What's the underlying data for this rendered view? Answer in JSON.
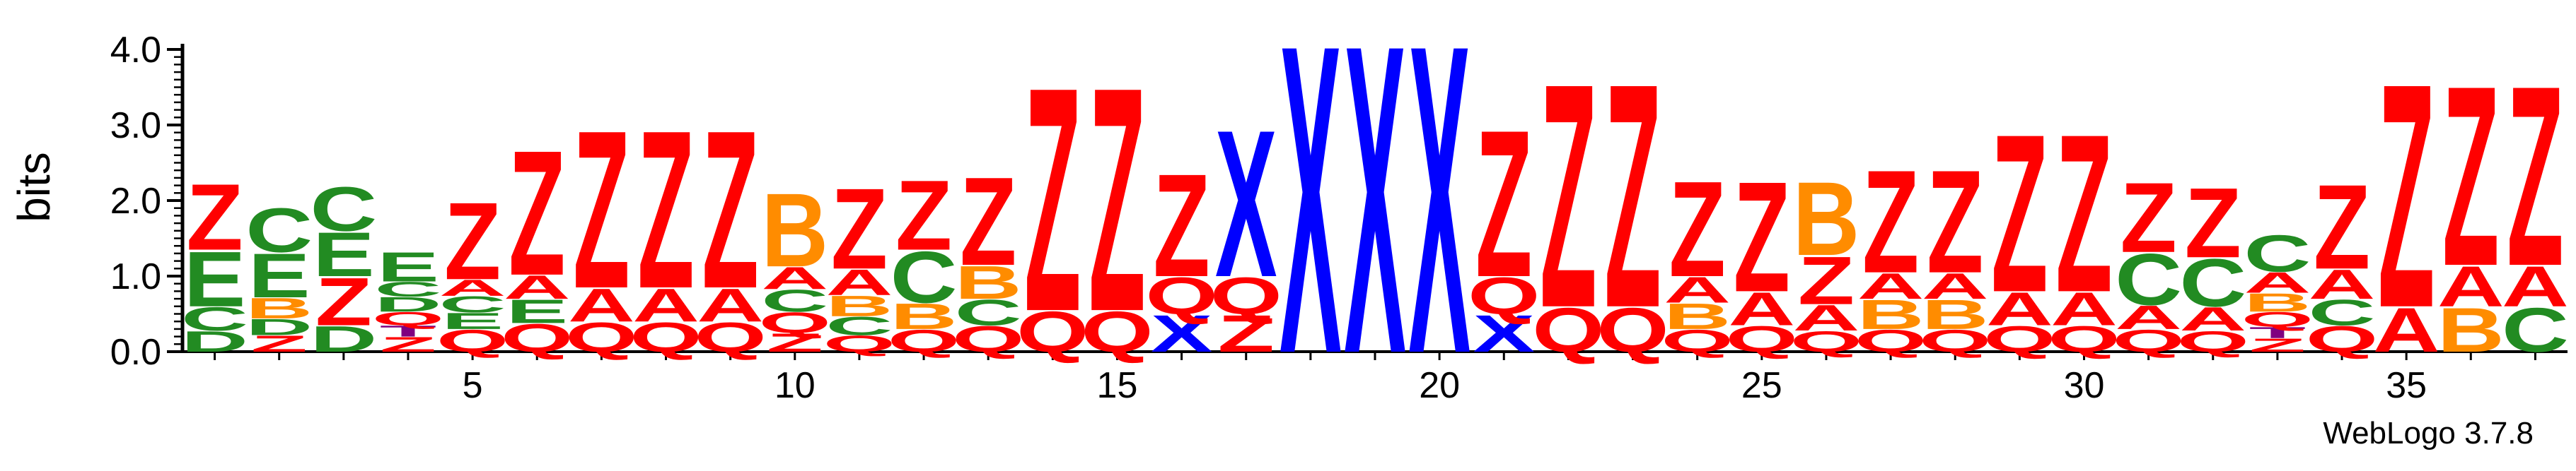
{
  "chart_data": {
    "type": "sequence_logo",
    "ylabel": "bits",
    "ylim": [
      0,
      4.0
    ],
    "yticks": [
      "0.0",
      "1.0",
      "2.0",
      "3.0",
      "4.0"
    ],
    "xticks": [
      "5",
      "10",
      "15",
      "20",
      "25",
      "30",
      "35"
    ],
    "xtick_positions": [
      5,
      10,
      15,
      20,
      25,
      30,
      35
    ],
    "colors": {
      "Z": "#ff0000",
      "Q": "#ff0000",
      "X": "#0000ff",
      "E": "#228b22",
      "C": "#228b22",
      "D": "#228b22",
      "A": "#ff0000",
      "B": "#ff8c00",
      "T": "#800080"
    },
    "positions": [
      {
        "pos": 1,
        "stack": [
          [
            "D",
            0.28
          ],
          [
            "C",
            0.32
          ],
          [
            "E",
            0.75
          ],
          [
            "Z",
            0.9
          ]
        ]
      },
      {
        "pos": 2,
        "stack": [
          [
            "Z",
            0.22
          ],
          [
            "D",
            0.22
          ],
          [
            "B",
            0.28
          ],
          [
            "E",
            0.6
          ],
          [
            "C",
            0.6
          ]
        ]
      },
      {
        "pos": 3,
        "stack": [
          [
            "D",
            0.35
          ],
          [
            "Z",
            0.65
          ],
          [
            "E",
            0.6
          ],
          [
            "C",
            0.6
          ]
        ]
      },
      {
        "pos": 4,
        "stack": [
          [
            "Z",
            0.2
          ],
          [
            "T",
            0.15
          ],
          [
            "Q",
            0.18
          ],
          [
            "D",
            0.2
          ],
          [
            "C",
            0.2
          ],
          [
            "E",
            0.4
          ]
        ]
      },
      {
        "pos": 5,
        "stack": [
          [
            "Q",
            0.3
          ],
          [
            "E",
            0.22
          ],
          [
            "C",
            0.22
          ],
          [
            "A",
            0.22
          ],
          [
            "Z",
            1.05
          ]
        ]
      },
      {
        "pos": 6,
        "stack": [
          [
            "Q",
            0.38
          ],
          [
            "E",
            0.32
          ],
          [
            "A",
            0.32
          ],
          [
            "Z",
            1.7
          ]
        ]
      },
      {
        "pos": 7,
        "stack": [
          [
            "Q",
            0.4
          ],
          [
            "A",
            0.45
          ],
          [
            "Z",
            2.15
          ]
        ]
      },
      {
        "pos": 8,
        "stack": [
          [
            "Q",
            0.4
          ],
          [
            "A",
            0.45
          ],
          [
            "Z",
            2.15
          ]
        ]
      },
      {
        "pos": 9,
        "stack": [
          [
            "Q",
            0.4
          ],
          [
            "A",
            0.45
          ],
          [
            "Z",
            2.15
          ]
        ]
      },
      {
        "pos": 10,
        "stack": [
          [
            "Z",
            0.25
          ],
          [
            "Q",
            0.28
          ],
          [
            "C",
            0.3
          ],
          [
            "A",
            0.3
          ],
          [
            "B",
            1.0
          ]
        ]
      },
      {
        "pos": 11,
        "stack": [
          [
            "Q",
            0.22
          ],
          [
            "C",
            0.25
          ],
          [
            "B",
            0.28
          ],
          [
            "A",
            0.35
          ],
          [
            "Z",
            1.1
          ]
        ]
      },
      {
        "pos": 12,
        "stack": [
          [
            "Q",
            0.3
          ],
          [
            "B",
            0.35
          ],
          [
            "C",
            0.7
          ],
          [
            "Z",
            0.95
          ]
        ]
      },
      {
        "pos": 13,
        "stack": [
          [
            "Q",
            0.35
          ],
          [
            "C",
            0.35
          ],
          [
            "B",
            0.45
          ],
          [
            "Z",
            1.2
          ]
        ]
      },
      {
        "pos": 14,
        "stack": [
          [
            "Q",
            0.55
          ],
          [
            "Z",
            3.05
          ]
        ]
      },
      {
        "pos": 15,
        "stack": [
          [
            "Q",
            0.55
          ],
          [
            "Z",
            3.05
          ]
        ]
      },
      {
        "pos": 16,
        "stack": [
          [
            "X",
            0.5
          ],
          [
            "Q",
            0.5
          ],
          [
            "Z",
            1.4
          ]
        ]
      },
      {
        "pos": 17,
        "stack": [
          [
            "Z",
            0.5
          ],
          [
            "Q",
            0.5
          ],
          [
            "X",
            2.0
          ]
        ]
      },
      {
        "pos": 18,
        "stack": [
          [
            "X",
            4.2
          ]
        ]
      },
      {
        "pos": 19,
        "stack": [
          [
            "X",
            4.2
          ]
        ]
      },
      {
        "pos": 20,
        "stack": [
          [
            "X",
            4.2
          ]
        ]
      },
      {
        "pos": 21,
        "stack": [
          [
            "X",
            0.5
          ],
          [
            "Q",
            0.5
          ],
          [
            "Z",
            2.0
          ]
        ]
      },
      {
        "pos": 22,
        "stack": [
          [
            "Q",
            0.6
          ],
          [
            "Z",
            3.05
          ]
        ]
      },
      {
        "pos": 23,
        "stack": [
          [
            "Q",
            0.6
          ],
          [
            "Z",
            3.05
          ]
        ]
      },
      {
        "pos": 24,
        "stack": [
          [
            "Q",
            0.3
          ],
          [
            "B",
            0.35
          ],
          [
            "A",
            0.35
          ],
          [
            "Z",
            1.3
          ]
        ]
      },
      {
        "pos": 25,
        "stack": [
          [
            "Q",
            0.35
          ],
          [
            "A",
            0.45
          ],
          [
            "Z",
            1.5
          ]
        ]
      },
      {
        "pos": 26,
        "stack": [
          [
            "Q",
            0.28
          ],
          [
            "A",
            0.35
          ],
          [
            "Z",
            0.65
          ],
          [
            "B",
            1.0
          ]
        ]
      },
      {
        "pos": 27,
        "stack": [
          [
            "Q",
            0.3
          ],
          [
            "B",
            0.4
          ],
          [
            "A",
            0.35
          ],
          [
            "Z",
            1.4
          ]
        ]
      },
      {
        "pos": 28,
        "stack": [
          [
            "Q",
            0.3
          ],
          [
            "B",
            0.4
          ],
          [
            "A",
            0.35
          ],
          [
            "Z",
            1.4
          ]
        ]
      },
      {
        "pos": 29,
        "stack": [
          [
            "Q",
            0.35
          ],
          [
            "A",
            0.45
          ],
          [
            "Z",
            2.15
          ]
        ]
      },
      {
        "pos": 30,
        "stack": [
          [
            "Q",
            0.35
          ],
          [
            "A",
            0.45
          ],
          [
            "Z",
            2.15
          ]
        ]
      },
      {
        "pos": 31,
        "stack": [
          [
            "Q",
            0.3
          ],
          [
            "A",
            0.32
          ],
          [
            "C",
            0.7
          ],
          [
            "Z",
            0.95
          ]
        ]
      },
      {
        "pos": 32,
        "stack": [
          [
            "Q",
            0.28
          ],
          [
            "A",
            0.32
          ],
          [
            "C",
            0.65
          ],
          [
            "Z",
            0.95
          ]
        ]
      },
      {
        "pos": 33,
        "stack": [
          [
            "Z",
            0.18
          ],
          [
            "T",
            0.15
          ],
          [
            "Q",
            0.2
          ],
          [
            "B",
            0.25
          ],
          [
            "A",
            0.28
          ],
          [
            "C",
            0.5
          ]
        ]
      },
      {
        "pos": 34,
        "stack": [
          [
            "Q",
            0.35
          ],
          [
            "C",
            0.35
          ],
          [
            "A",
            0.4
          ],
          [
            "Z",
            1.15
          ]
        ]
      },
      {
        "pos": 35,
        "stack": [
          [
            "A",
            0.6
          ],
          [
            "Z",
            3.05
          ]
        ]
      },
      {
        "pos": 36,
        "stack": [
          [
            "B",
            0.6
          ],
          [
            "A",
            0.55
          ],
          [
            "Z",
            2.45
          ]
        ]
      },
      {
        "pos": 37,
        "stack": [
          [
            "C",
            0.6
          ],
          [
            "A",
            0.55
          ],
          [
            "Z",
            2.45
          ]
        ]
      }
    ]
  },
  "footer": {
    "credit": "WebLogo 3.7.8"
  }
}
